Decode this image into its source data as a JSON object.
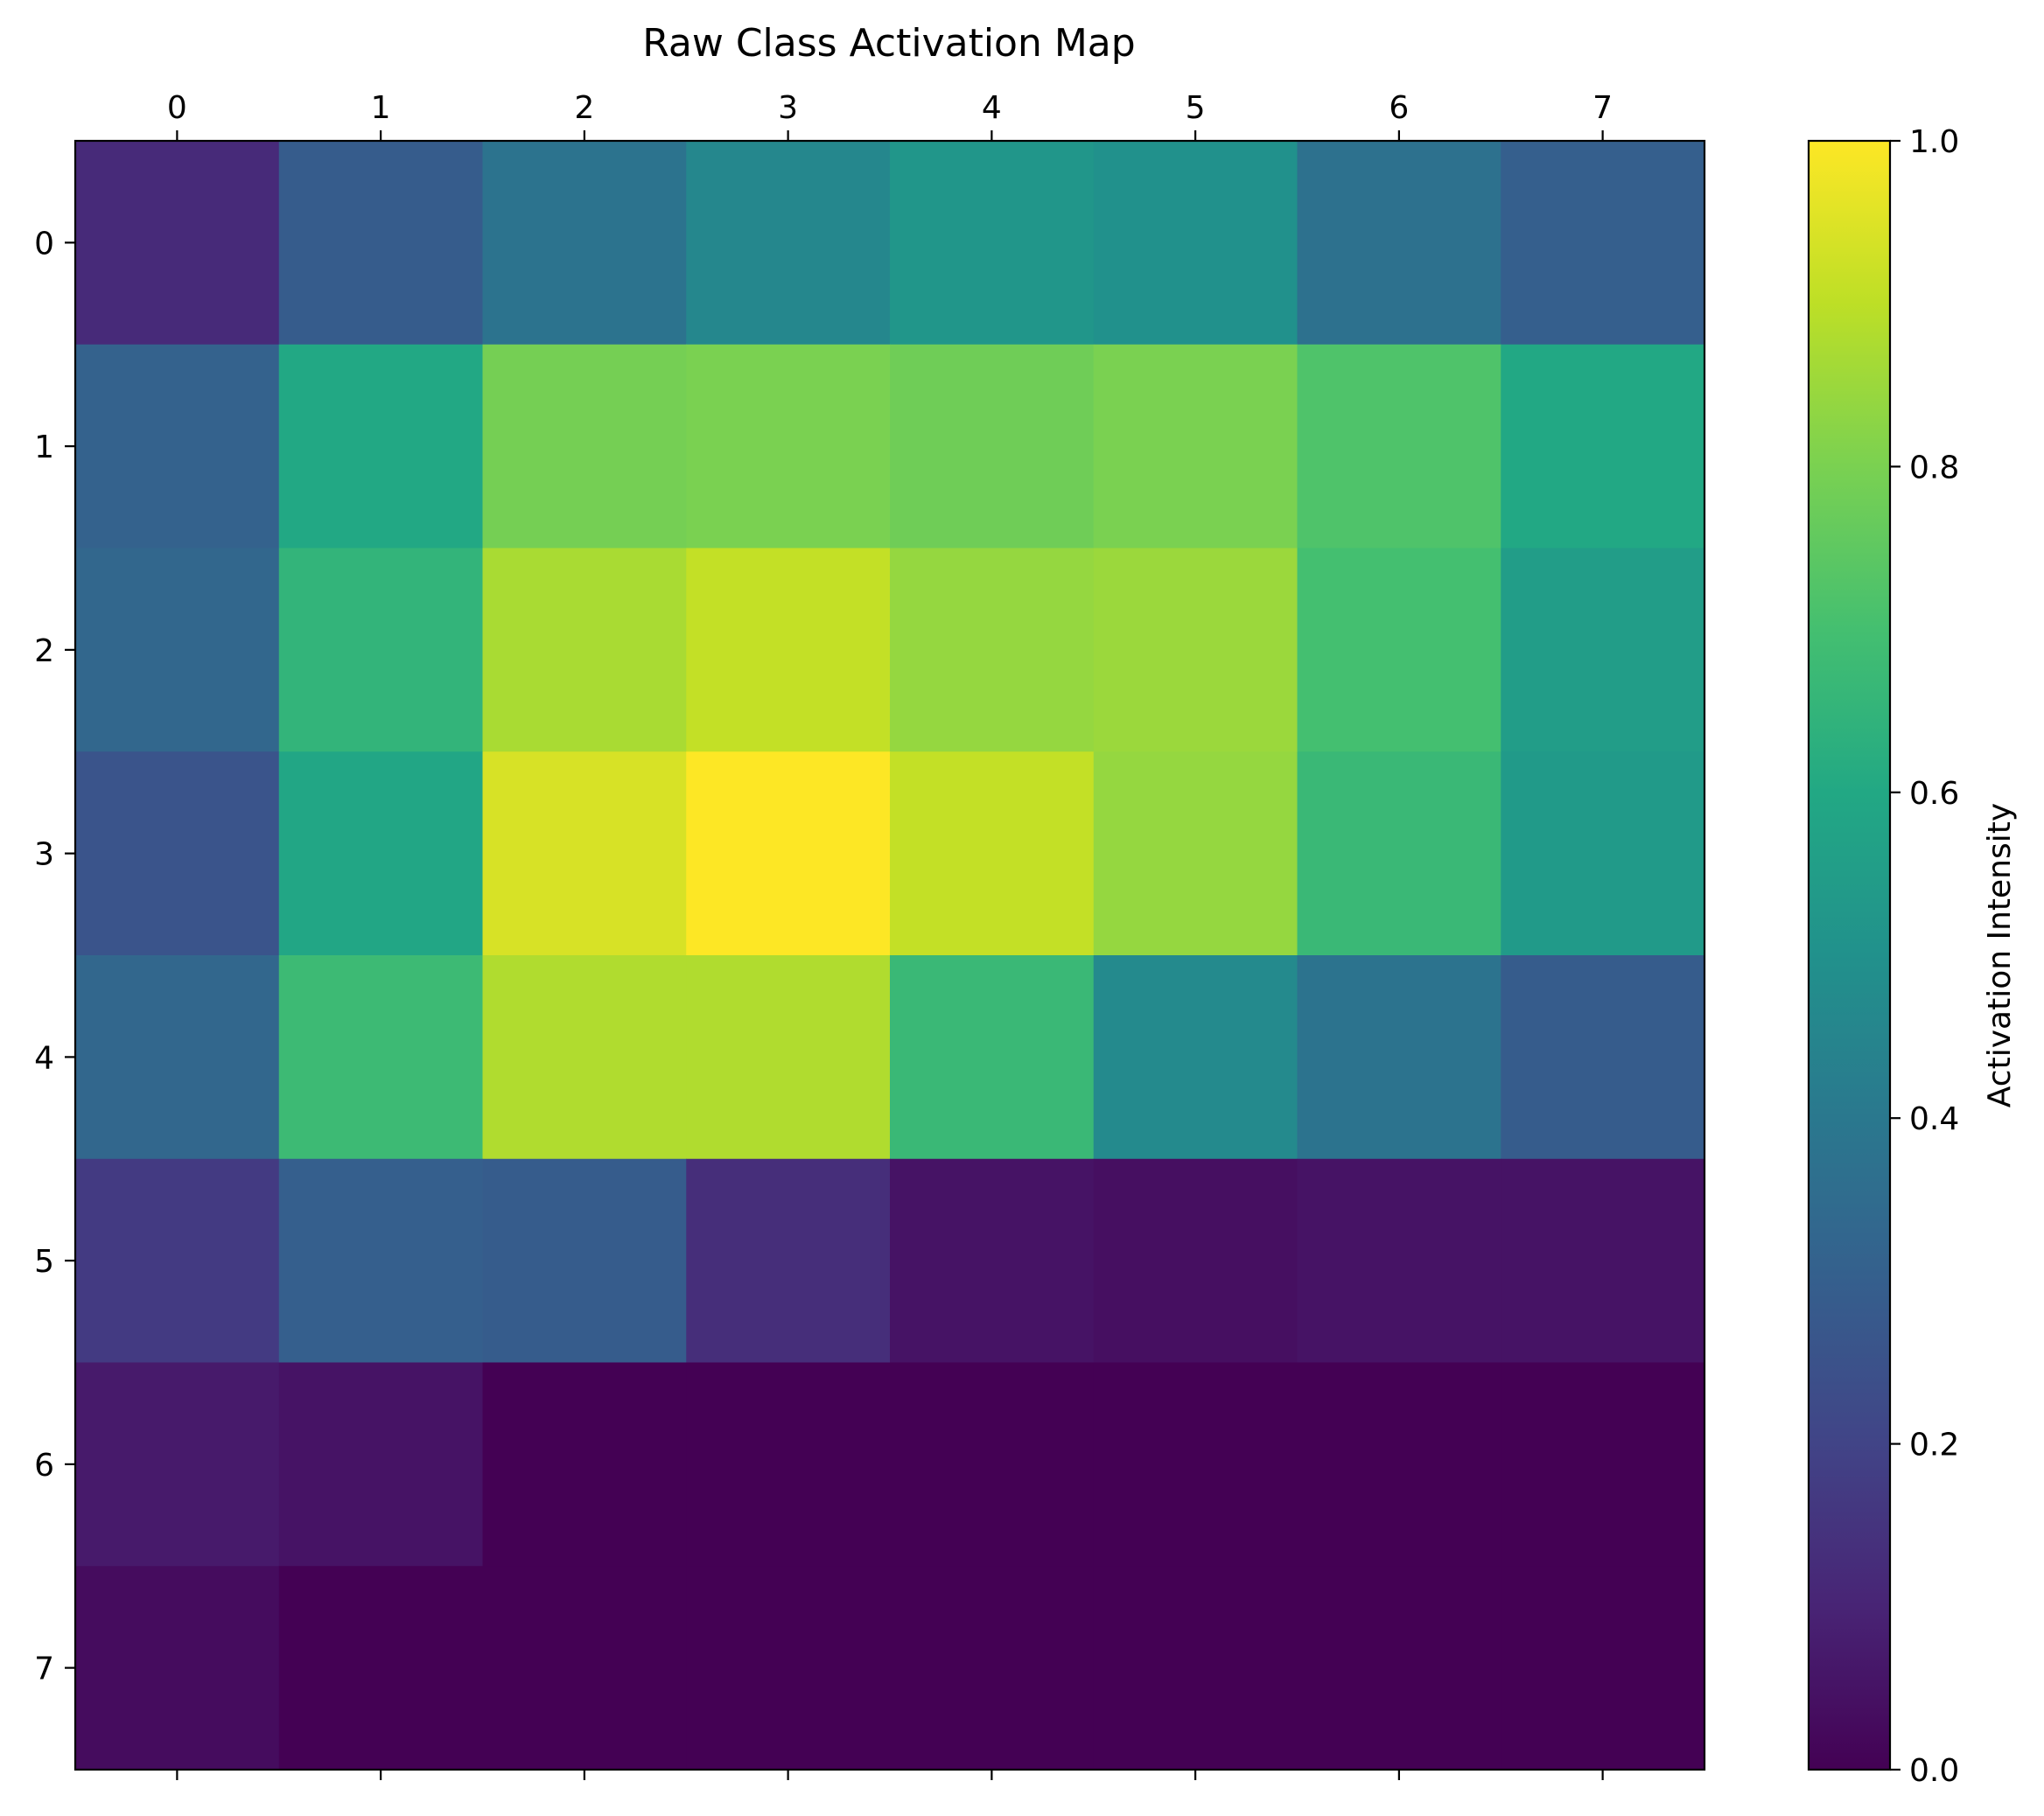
{
  "chart_data": {
    "type": "heatmap",
    "title": "Raw Class Activation Map",
    "x_ticks": [
      "0",
      "1",
      "2",
      "3",
      "4",
      "5",
      "6",
      "7"
    ],
    "y_ticks": [
      "0",
      "1",
      "2",
      "3",
      "4",
      "5",
      "6",
      "7"
    ],
    "x_tick_position": "top",
    "values": [
      [
        0.12,
        0.29,
        0.38,
        0.46,
        0.52,
        0.5,
        0.37,
        0.3
      ],
      [
        0.31,
        0.6,
        0.79,
        0.8,
        0.78,
        0.8,
        0.72,
        0.6
      ],
      [
        0.33,
        0.65,
        0.87,
        0.91,
        0.84,
        0.85,
        0.7,
        0.55
      ],
      [
        0.26,
        0.59,
        0.94,
        1.0,
        0.91,
        0.84,
        0.67,
        0.54
      ],
      [
        0.33,
        0.68,
        0.88,
        0.88,
        0.67,
        0.47,
        0.38,
        0.29
      ],
      [
        0.17,
        0.3,
        0.29,
        0.13,
        0.05,
        0.04,
        0.05,
        0.05
      ],
      [
        0.07,
        0.05,
        0.0,
        0.0,
        0.0,
        0.0,
        0.0,
        0.0
      ],
      [
        0.03,
        0.0,
        0.0,
        0.0,
        0.0,
        0.0,
        0.0,
        0.0
      ]
    ],
    "colormap": "viridis",
    "vmin": 0.0,
    "vmax": 1.0,
    "colorbar": {
      "label": "Activation Intensity",
      "ticks": [
        "0.0",
        "0.2",
        "0.4",
        "0.6",
        "0.8",
        "1.0"
      ],
      "tick_values": [
        0.0,
        0.2,
        0.4,
        0.6,
        0.8,
        1.0
      ]
    },
    "grid": false
  }
}
